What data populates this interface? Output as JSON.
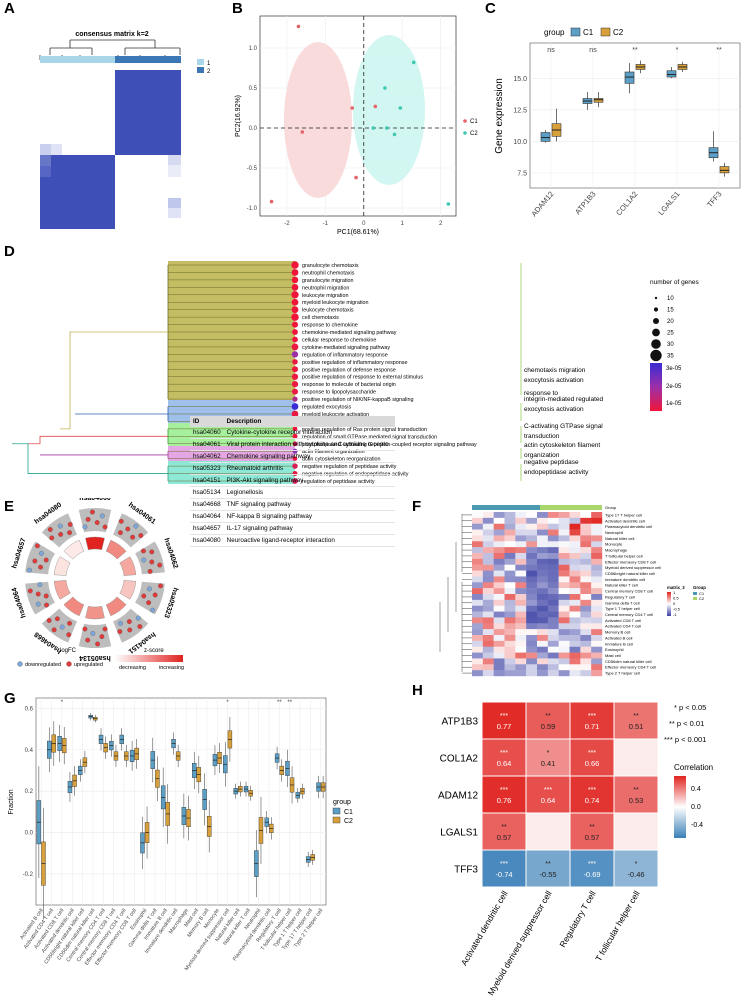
{
  "panel_labels": [
    "A",
    "B",
    "C",
    "D",
    "E",
    "F",
    "G",
    "H"
  ],
  "colors": {
    "c1": "#5b9fc6",
    "c2": "#d8a03a",
    "pink": "#f8d7d7",
    "teal": "#cdf5ef",
    "c1pt": "#e5636b",
    "c2pt": "#3ec7b1",
    "heat_blue": "#3f4fb8",
    "olive": "#c5bd63",
    "blue_band": "#9ec0ea",
    "green_band": "#a6ef9c",
    "pink_band": "#e5a7e3",
    "cyan_band": "#8fe8d6"
  },
  "panelA": {
    "title": "consensus matrix k=2",
    "legend": [
      "1",
      "2"
    ]
  },
  "panelB": {
    "xlabel": "PC1(68.61%)",
    "ylabel": "PC2(16.92%)",
    "xticks": [
      "-2",
      "-1",
      "0",
      "1",
      "2"
    ],
    "yticks": [
      "1.0",
      "0.5",
      "0.0",
      "-0.5",
      "-1.0"
    ],
    "legend": [
      "C1",
      "C2"
    ]
  },
  "panelC": {
    "legend_title": "group",
    "legend": [
      "C1",
      "C2"
    ],
    "ylabel": "Gene expression",
    "yticks": [
      "15.0",
      "12.5",
      "10.0",
      "7.5"
    ],
    "genes": [
      "ADAM12",
      "ATP1B3",
      "COL1A2",
      "LGALS1",
      "TFF3"
    ],
    "signif": [
      "ns",
      "ns",
      "**",
      "*",
      "**"
    ]
  },
  "panelD": {
    "terms": [
      "granulocyte chemotaxis",
      "neutrophil chemotaxis",
      "granulocyte migration",
      "neutrophil migration",
      "leukocyte migration",
      "myeloid leukocyte migration",
      "leukocyte chemotaxis",
      "cell chemotaxis",
      "response to chemokine",
      "chemokine-mediated signaling pathway",
      "cellular response to chemokine",
      "cytokine-mediated signaling pathway",
      "regulation of inflammatory response",
      "positive regulation of inflammatory response",
      "positive regulation of defense response",
      "positive regulation of response to external stimulus",
      "response to molecule of bacterial origin",
      "response to lipopolysaccharide",
      "positive regulation of NIK/NF-kappaB signaling",
      "regulated exocytosis",
      "myeloid leukocyte activation",
      "integrin-mediated signaling pathway",
      "positive regulation of Ras protein signal transduction",
      "regulation of small GTPase mediated signal transduction",
      "phospholipase C-activating G protein-coupled receptor signaling pathway",
      "actin filament organization",
      "actin cytoskeleton reorganization",
      "negative regulation of peptidase activity",
      "negative regulation of endopeptidase activity",
      "regulation of peptidase activity"
    ],
    "cluster_labels": [
      [
        "chemotaxis migration",
        "exocytosis activation",
        "response to"
      ],
      [
        "integrin-mediated regulated",
        "exocytosis activation"
      ],
      [
        "C-activating GTPase signal",
        "transduction"
      ],
      [
        "actin cytoskeleton filament",
        "organization"
      ],
      [
        "negative peptidase",
        "endopeptidase activity"
      ]
    ],
    "size_legend_title": "number of genes",
    "size_legend": [
      "10",
      "15",
      "20",
      "25",
      "30",
      "35"
    ],
    "color_legend": [
      "3e-05",
      "2e-05",
      "1e-05"
    ]
  },
  "panelE": {
    "ring_labels": [
      "hsa04060",
      "hsa04061",
      "hsa04062",
      "hsa05323",
      "hsa04151",
      "hsa05134",
      "hsa04668",
      "hsa04064",
      "hsa04657",
      "hsa04080"
    ],
    "table_header": [
      "ID",
      "Description"
    ],
    "rows": [
      [
        "hsa04060",
        "Cytokine-cytokine receptor interaction"
      ],
      [
        "hsa04061",
        "Viral protein interaction with cytokine and cytokine recepto"
      ],
      [
        "hsa04062",
        "Chemokine signaling pathway"
      ],
      [
        "hsa05323",
        "Rheumatoid arthritis"
      ],
      [
        "hsa04151",
        "PI3K-Akt signaling pathway"
      ],
      [
        "hsa05134",
        "Legionellosis"
      ],
      [
        "hsa04668",
        "TNF signaling pathway"
      ],
      [
        "hsa04064",
        "NF-kappa B signaling pathway"
      ],
      [
        "hsa04657",
        "IL-17 signaling pathway"
      ],
      [
        "hsa04080",
        "Neuroactive ligand-receptor interaction"
      ]
    ],
    "logfc_title": "logFC",
    "logfc_legend": [
      "downregulated",
      "upregulated"
    ],
    "z_title": "z-score",
    "z_legend": [
      "decreasing",
      "increasing"
    ]
  },
  "panelF": {
    "row_labels": [
      "Group",
      "Type 17 T helper cell",
      "Activated dendritic cell",
      "Plasmacytoid dendritic cell",
      "Neutrophil",
      "Natural killer cell",
      "Monocyte",
      "Macrophage",
      "T follicular helper cell",
      "Effector memeory CD8 T cell",
      "Myeloid derived suppressor cell",
      "CD56bright natural killer cell",
      "Immature dendritic cell",
      "Natural killer T cell",
      "Central memory CD8 T cell",
      "Regulatory T cell",
      "Gamma delta T cell",
      "Type 1 T helper cell",
      "Central memory CD4 T cell",
      "Activated CD8 T cell",
      "Activated CD4 T cell",
      "Memory B cell",
      "Activated B cell",
      "Immature B cell",
      "Eosinophil",
      "Mast cell",
      "CD56dim natural killer cell",
      "Effector memeory CD4 T cell",
      "Type 2 T helper cell"
    ],
    "legend_title_1": "matrix_3",
    "legend_title_2": "Group",
    "legend_vals": [
      "1",
      "0.5",
      "0",
      "-0.5",
      "-1"
    ],
    "legend_groups": [
      "C1",
      "C2"
    ]
  },
  "panelG": {
    "ylabel": "Fraction",
    "yticks": [
      "0.6",
      "0.4",
      "0.2",
      "0.0",
      "-0.2"
    ],
    "legend_title": "group",
    "legend": [
      "C1",
      "C2"
    ],
    "cells": [
      "Activated B cell",
      "Activated CD4 T cell",
      "Activated CD8 T cell",
      "Activated dendritic cell",
      "CD56bright natural killer cell",
      "CD56dim natural killer cell",
      "Central memory CD4 T cell",
      "Central memory CD8 T cell",
      "Effector memeory CD4 T cell",
      "Effector memeory CD8 T cell",
      "Eosinophil",
      "Gamma delta T cell",
      "Immature B cell",
      "Immature dendritic cell",
      "Macrophage",
      "Mast cell",
      "Memory B cell",
      "Monocyte",
      "Myeloid derived suppressor cell",
      "Natural killer cell",
      "Natural killer T cell",
      "Neutrophil",
      "Plasmacytoid dendritic cell",
      "Regulatory T cell",
      "T follicular helper cell",
      "Type 1 T helper cell",
      "Type 17 T helper cell",
      "Type 2 T helper cell"
    ],
    "signif": [
      "",
      "",
      "*",
      "",
      "",
      "",
      "",
      "",
      "",
      "",
      "",
      "",
      "",
      "",
      "",
      "",
      "",
      "",
      "*",
      "",
      "",
      "",
      "",
      "**",
      "**",
      "",
      "",
      ""
    ]
  },
  "panelH": {
    "genes": [
      "ATP1B3",
      "COL1A2",
      "ADAM12",
      "LGALS1",
      "TFF3"
    ],
    "cells": [
      "Activated dendritic cell",
      "Myeloid derived suppressor cell",
      "Regulatory T cell",
      "T follicular helper cell"
    ],
    "stars": [
      [
        "***",
        "**",
        "***",
        "**"
      ],
      [
        "***",
        "*",
        "***",
        ""
      ],
      [
        "***",
        "***",
        "***",
        "**"
      ],
      [
        "**",
        "",
        "**",
        ""
      ],
      [
        "***",
        "**",
        "***",
        "*"
      ]
    ],
    "values": [
      [
        "0.77",
        "0.59",
        "0.71",
        "0.51"
      ],
      [
        "0.64",
        "0.41",
        "0.66",
        ""
      ],
      [
        "0.76",
        "0.64",
        "0.74",
        "0.53"
      ],
      [
        "0.57",
        "",
        "0.57",
        ""
      ],
      [
        "-0.74",
        "-0.55",
        "-0.69",
        "-0.46"
      ]
    ],
    "sig_legend": [
      "* p < 0.05",
      "** p < 0.01",
      "*** p < 0.001"
    ],
    "corr_title": "Correlation",
    "corr_ticks": [
      "0.4",
      "0.0",
      "-0.4"
    ]
  },
  "chart_data": [
    {
      "type": "heatmap",
      "panel": "A",
      "title": "consensus matrix k=2",
      "legend": [
        "1",
        "2"
      ]
    },
    {
      "type": "scatter",
      "panel": "B",
      "xlabel": "PC1(68.61%)",
      "ylabel": "PC2(16.92%)",
      "xlim": [
        -2.7,
        2.4
      ],
      "ylim": [
        -1.1,
        1.4
      ],
      "series": [
        {
          "name": "C1",
          "x": [
            -1.7,
            -1.6,
            -2.4,
            -0.3,
            -0.2,
            0.3
          ],
          "y": [
            1.27,
            -0.05,
            -0.92,
            0.25,
            -0.62,
            0.27
          ]
        },
        {
          "name": "C2",
          "x": [
            0.25,
            0.55,
            0.95,
            1.3,
            0.6,
            2.2,
            0.8
          ],
          "y": [
            0.0,
            0.5,
            0.25,
            0.82,
            0.0,
            -0.95,
            -0.08
          ]
        }
      ]
    },
    {
      "type": "box",
      "panel": "C",
      "ylabel": "Gene expression",
      "categories": [
        "ADAM12",
        "ATP1B3",
        "COL1A2",
        "LGALS1",
        "TFF3"
      ],
      "ylim": [
        6.3,
        17.8
      ],
      "series": [
        {
          "name": "C1",
          "median": [
            10.3,
            13.2,
            15.1,
            15.3,
            9.1
          ],
          "q1": [
            10.0,
            13.0,
            14.6,
            15.1,
            8.7
          ],
          "q3": [
            10.7,
            13.4,
            15.5,
            15.6,
            9.5
          ],
          "min": [
            9.9,
            12.5,
            13.8,
            15.0,
            8.4
          ],
          "max": [
            10.9,
            13.9,
            16.2,
            15.9,
            10.8
          ]
        },
        {
          "name": "C2",
          "median": [
            10.9,
            13.3,
            15.9,
            15.9,
            7.7
          ],
          "q1": [
            10.4,
            13.1,
            15.7,
            15.7,
            7.5
          ],
          "q3": [
            11.4,
            13.4,
            16.1,
            16.1,
            8.0
          ],
          "min": [
            10.0,
            12.7,
            15.4,
            15.5,
            7.2
          ],
          "max": [
            12.6,
            13.9,
            16.4,
            16.3,
            8.3
          ]
        }
      ],
      "annotations": [
        "ns",
        "ns",
        "**",
        "*",
        "**"
      ]
    },
    {
      "type": "dendrogram",
      "panel": "D",
      "size_legend": [
        10,
        15,
        20,
        25,
        30,
        35
      ],
      "color_legend": [
        "3e-05",
        "2e-05",
        "1e-05"
      ]
    },
    {
      "type": "heatmap",
      "panel": "F",
      "legend_values": [
        1,
        0.5,
        0,
        -0.5,
        -1
      ]
    },
    {
      "type": "box",
      "panel": "G",
      "ylabel": "Fraction",
      "ylim": [
        -0.35,
        0.65
      ],
      "categories": [
        "Activated B cell",
        "Activated CD4 T cell",
        "Activated CD8 T cell",
        "Activated dendritic cell",
        "CD56bright natural killer cell",
        "CD56dim natural killer cell",
        "Central memory CD4 T cell",
        "Central memory CD8 T cell",
        "Effector memeory CD4 T cell",
        "Effector memeory CD8 T cell",
        "Eosinophil",
        "Gamma delta T cell",
        "Immature B cell",
        "Immature dendritic cell",
        "Macrophage",
        "Mast cell",
        "Memory B cell",
        "Monocyte",
        "Myeloid derived suppressor cell",
        "Natural killer cell",
        "Natural killer T cell",
        "Neutrophil",
        "Plasmacytoid dendritic cell",
        "Regulatory T cell",
        "T follicular helper cell",
        "Type 1 T helper cell",
        "Type 17 T helper cell",
        "Type 2 T helper cell"
      ],
      "series": [
        {
          "name": "C1",
          "median": [
            0.05,
            0.4,
            0.43,
            0.22,
            0.3,
            0.56,
            0.45,
            0.42,
            0.45,
            0.37,
            -0.05,
            0.35,
            0.17,
            0.43,
            0.08,
            0.3,
            0.16,
            0.35,
            0.33,
            0.2,
            0.21,
            -0.15,
            0.05,
            0.36,
            0.31,
            0.18,
            -0.13,
            0.22
          ]
        },
        {
          "name": "C2",
          "median": [
            -0.15,
            0.43,
            0.42,
            0.25,
            0.34,
            0.55,
            0.41,
            0.37,
            0.37,
            0.38,
            0.0,
            0.26,
            0.09,
            0.37,
            0.07,
            0.28,
            0.03,
            0.36,
            0.45,
            0.21,
            0.19,
            0.01,
            0.02,
            0.3,
            0.23,
            0.2,
            -0.12,
            0.22
          ]
        }
      ],
      "annotations": [
        "",
        "",
        "*",
        "",
        "",
        "",
        "",
        "",
        "",
        "",
        "",
        "",
        "",
        "",
        "",
        "",
        "",
        "",
        "*",
        "",
        "",
        "",
        "",
        "**",
        "**",
        "",
        "",
        ""
      ]
    },
    {
      "type": "heatmap",
      "panel": "H",
      "rows": [
        "ATP1B3",
        "COL1A2",
        "ADAM12",
        "LGALS1",
        "TFF3"
      ],
      "columns": [
        "Activated dendritic cell",
        "Myeloid derived suppressor cell",
        "Regulatory T cell",
        "T follicular helper cell"
      ],
      "values": [
        [
          0.77,
          0.59,
          0.71,
          0.51
        ],
        [
          0.64,
          0.41,
          0.66,
          null
        ],
        [
          0.76,
          0.64,
          0.74,
          0.53
        ],
        [
          0.57,
          null,
          0.57,
          null
        ],
        [
          -0.74,
          -0.55,
          -0.69,
          -0.46
        ]
      ],
      "color_range": [
        -0.75,
        0.75
      ]
    }
  ]
}
